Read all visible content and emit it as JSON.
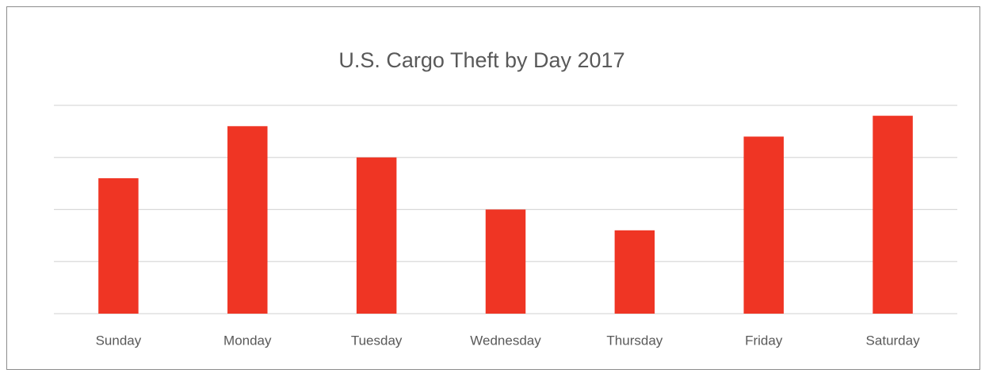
{
  "chart_data": {
    "type": "bar",
    "title": "U.S. Cargo Theft by Day 2017",
    "categories": [
      "Sunday",
      "Monday",
      "Tuesday",
      "Wednesday",
      "Thursday",
      "Friday",
      "Saturday"
    ],
    "values": [
      2.6,
      3.6,
      3.0,
      2.0,
      1.6,
      3.4,
      3.8
    ],
    "color": "#ef3524",
    "ylim": [
      0,
      4
    ],
    "yticks": [
      0,
      1,
      2,
      3,
      4
    ],
    "grid": true
  }
}
